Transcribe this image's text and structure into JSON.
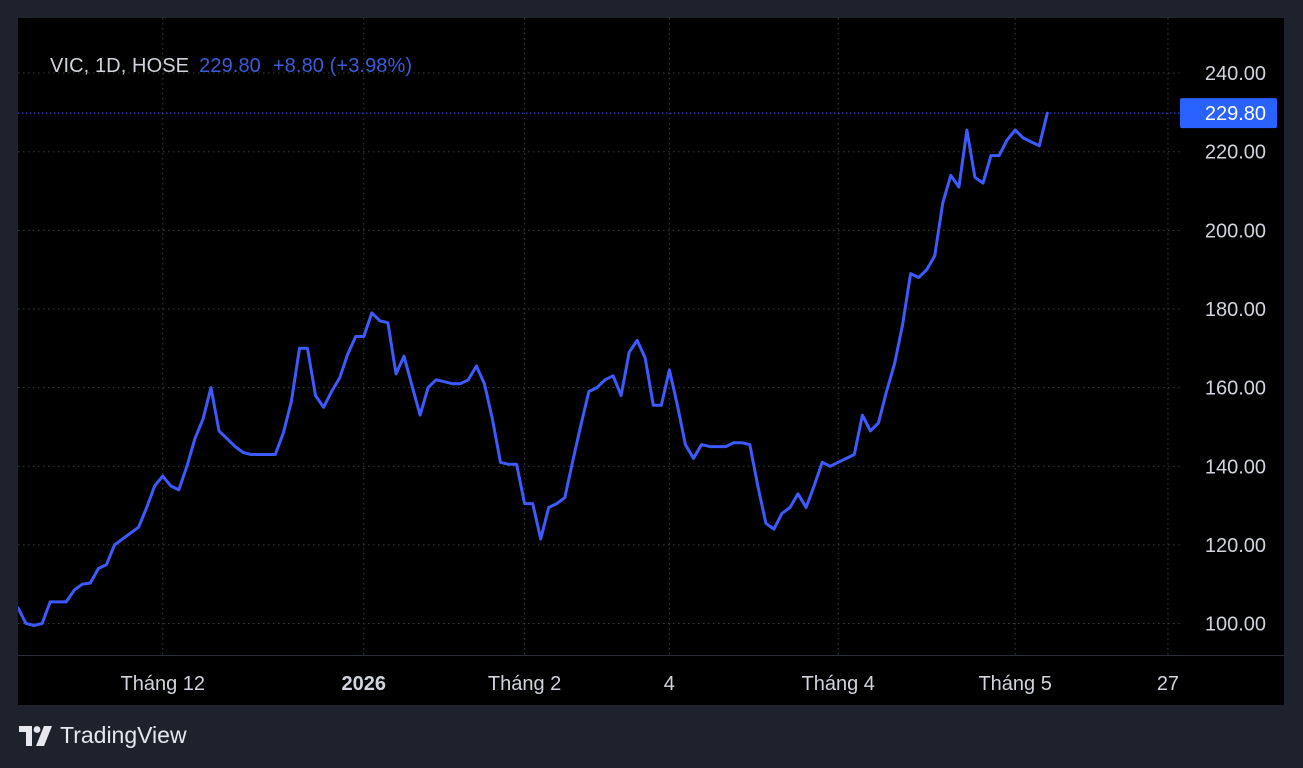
{
  "legend": {
    "symbol": "VIC, 1D, HOSE",
    "last": "229.80",
    "change": "+8.80 (+3.98%)"
  },
  "brand": {
    "name": "TradingView",
    "icon": "tradingview-logo-icon"
  },
  "colors": {
    "background": "#1e222d",
    "plot": "#000000",
    "line": "#3d5afe",
    "grid": "#3a3e48",
    "axis_text": "#d1d4dc",
    "price_label_bg": "#2962ff"
  },
  "chart_data": {
    "type": "line",
    "title": "VIC, 1D, HOSE",
    "xlabel": "",
    "ylabel": "",
    "grid": true,
    "ylim": [
      92,
      254
    ],
    "xlim": [
      0,
      144.5
    ],
    "y_ticks": [
      "100.00",
      "120.00",
      "140.00",
      "160.00",
      "180.00",
      "200.00",
      "220.00",
      "240.00"
    ],
    "x_ticks": [
      {
        "label": "Tháng 12",
        "x": 18,
        "bold": false
      },
      {
        "label": "2026",
        "x": 43,
        "bold": true
      },
      {
        "label": "Tháng 2",
        "x": 63,
        "bold": false
      },
      {
        "label": "4",
        "x": 81,
        "bold": false
      },
      {
        "label": "Tháng 4",
        "x": 102,
        "bold": false
      },
      {
        "label": "Tháng 5",
        "x": 124,
        "bold": false
      },
      {
        "label": "27",
        "x": 143,
        "bold": false
      }
    ],
    "last_price": {
      "label": "229.80",
      "value": 229.8
    },
    "series": [
      {
        "values": [
          104,
          100,
          99.5,
          100,
          105.5,
          105.5,
          105.5,
          108.5,
          110,
          110.3,
          114,
          115,
          120,
          121.5,
          123,
          124.5,
          129.5,
          135,
          137.5,
          135,
          134,
          140,
          147,
          152,
          160,
          149,
          147,
          145,
          143.5,
          143,
          143,
          143,
          143,
          148.5,
          156.5,
          170,
          170,
          158,
          155,
          159,
          162.5,
          168.5,
          173,
          173,
          179,
          177,
          176.5,
          163.5,
          168,
          160.5,
          153,
          160,
          162,
          161.5,
          161,
          161,
          162,
          165.5,
          161,
          152,
          141,
          140.5,
          140.5,
          130.5,
          130.5,
          121.5,
          129.5,
          130.5,
          132,
          141.5,
          150.5,
          159,
          160,
          162,
          163,
          158,
          169,
          172,
          167.5,
          155.5,
          155.5,
          164.5,
          155.5,
          145.5,
          142,
          145.5,
          145,
          145,
          145,
          146,
          146,
          145.5,
          135,
          125.5,
          124,
          128,
          129.5,
          133,
          129.5,
          135,
          141,
          140,
          141,
          142,
          143,
          153,
          149,
          151,
          159,
          166,
          176,
          189,
          188,
          190,
          193.5,
          207,
          214,
          211,
          225.5,
          213.5,
          212,
          219,
          219,
          223,
          225.5,
          223.5,
          222.5,
          221.5,
          229.8
        ]
      }
    ]
  }
}
